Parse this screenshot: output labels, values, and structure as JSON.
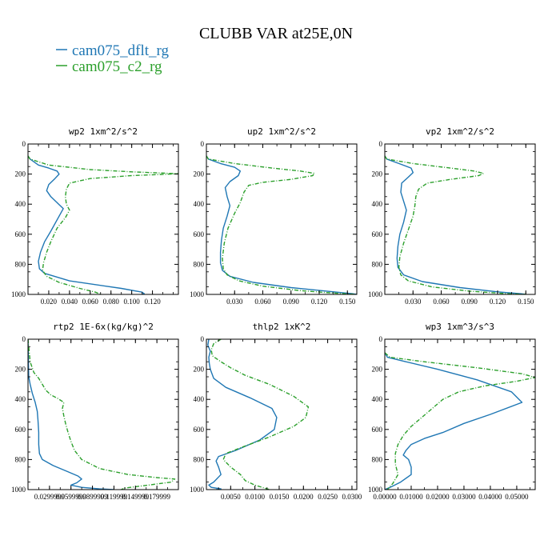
{
  "figure": {
    "title": "CLUBB VAR at25E,0N",
    "legend": [
      {
        "label": "cam075_dflt_rg",
        "color": "#1f77b4"
      },
      {
        "label": "cam075_c2_rg",
        "color": "#2ca02c"
      }
    ]
  },
  "chart_data": [
    {
      "type": "line",
      "title": "wp2   1xm^2/s^2",
      "xlim": [
        0,
        0.145
      ],
      "ylim": [
        1000,
        0
      ],
      "xticks": [
        0.02,
        0.04,
        0.06,
        0.08,
        0.1,
        0.12
      ],
      "xtick_labels": [
        "0.020",
        "0.040",
        "0.060",
        "0.080",
        "0.100",
        "0.120"
      ],
      "yticks": [
        0,
        200,
        400,
        600,
        800,
        1000
      ],
      "ytick_labels": [
        "0",
        "200",
        "400",
        "600",
        "800",
        "1000"
      ],
      "series": [
        {
          "name": "cam075_dflt_rg",
          "color": "#1f77b4",
          "x": [
            0,
            0.002,
            0.01,
            0.02,
            0.028,
            0.03,
            0.026,
            0.02,
            0.018,
            0.022,
            0.028,
            0.034,
            0.03,
            0.022,
            0.016,
            0.012,
            0.01,
            0.011,
            0.016,
            0.04,
            0.09,
            0.11,
            0.112,
            0.11
          ],
          "y": [
            80,
            100,
            140,
            160,
            180,
            200,
            230,
            270,
            310,
            350,
            390,
            430,
            480,
            580,
            650,
            720,
            780,
            830,
            860,
            910,
            960,
            985,
            995,
            1000
          ]
        },
        {
          "name": "cam075_c2_rg",
          "color": "#2ca02c",
          "x": [
            0,
            0.002,
            0.02,
            0.06,
            0.1,
            0.13,
            0.145,
            0.1,
            0.06,
            0.04,
            0.037,
            0.036,
            0.037,
            0.04,
            0.036,
            0.028,
            0.022,
            0.018,
            0.015,
            0.014,
            0.018,
            0.03,
            0.05,
            0.065,
            0.07
          ],
          "y": [
            80,
            100,
            140,
            170,
            185,
            193,
            198,
            210,
            230,
            260,
            300,
            350,
            400,
            440,
            490,
            560,
            650,
            720,
            790,
            840,
            880,
            920,
            960,
            985,
            1000
          ]
        }
      ]
    },
    {
      "type": "line",
      "title": "up2   1xm^2/s^2",
      "xlim": [
        0,
        0.16
      ],
      "ylim": [
        1000,
        0
      ],
      "xticks": [
        0.03,
        0.06,
        0.09,
        0.12,
        0.15
      ],
      "xtick_labels": [
        "0.030",
        "0.060",
        "0.090",
        "0.120",
        "0.150"
      ],
      "yticks": [
        0,
        200,
        400,
        600,
        800,
        1000
      ],
      "ytick_labels": [
        "0",
        "200",
        "400",
        "600",
        "800",
        "1000"
      ],
      "series": [
        {
          "name": "cam075_dflt_rg",
          "color": "#1f77b4",
          "x": [
            0,
            0.002,
            0.015,
            0.03,
            0.036,
            0.034,
            0.025,
            0.02,
            0.022,
            0.025,
            0.022,
            0.018,
            0.016,
            0.015,
            0.015,
            0.017,
            0.025,
            0.05,
            0.09,
            0.13,
            0.155,
            0.16
          ],
          "y": [
            80,
            100,
            130,
            155,
            180,
            210,
            250,
            290,
            350,
            410,
            480,
            560,
            640,
            720,
            790,
            840,
            880,
            920,
            955,
            980,
            995,
            1000
          ]
        },
        {
          "name": "cam075_c2_rg",
          "color": "#2ca02c",
          "x": [
            0,
            0.002,
            0.03,
            0.07,
            0.1,
            0.115,
            0.113,
            0.09,
            0.06,
            0.045,
            0.04,
            0.036,
            0.03,
            0.023,
            0.019,
            0.017,
            0.018,
            0.022,
            0.035,
            0.06,
            0.1,
            0.14,
            0.16
          ],
          "y": [
            80,
            100,
            130,
            160,
            180,
            195,
            210,
            235,
            255,
            275,
            320,
            390,
            460,
            560,
            660,
            760,
            830,
            870,
            910,
            945,
            975,
            993,
            1000
          ]
        }
      ]
    },
    {
      "type": "line",
      "title": "vp2   1xm^2/s^2",
      "xlim": [
        0,
        0.16
      ],
      "ylim": [
        1000,
        0
      ],
      "xticks": [
        0.03,
        0.06,
        0.09,
        0.12,
        0.15
      ],
      "xtick_labels": [
        "0.030",
        "0.060",
        "0.090",
        "0.120",
        "0.150"
      ],
      "yticks": [
        0,
        200,
        400,
        600,
        800,
        1000
      ],
      "ytick_labels": [
        "0",
        "200",
        "400",
        "600",
        "800",
        "1000"
      ],
      "series": [
        {
          "name": "cam075_dflt_rg",
          "color": "#1f77b4",
          "x": [
            0,
            0.002,
            0.015,
            0.028,
            0.03,
            0.025,
            0.018,
            0.017,
            0.02,
            0.023,
            0.02,
            0.016,
            0.014,
            0.013,
            0.014,
            0.02,
            0.04,
            0.08,
            0.12,
            0.145,
            0.15
          ],
          "y": [
            80,
            100,
            130,
            160,
            190,
            220,
            260,
            320,
            380,
            440,
            520,
            600,
            680,
            760,
            820,
            870,
            915,
            955,
            983,
            996,
            1000
          ]
        },
        {
          "name": "cam075_c2_rg",
          "color": "#2ca02c",
          "x": [
            0,
            0.002,
            0.03,
            0.07,
            0.095,
            0.105,
            0.1,
            0.07,
            0.045,
            0.036,
            0.033,
            0.032,
            0.03,
            0.025,
            0.02,
            0.016,
            0.015,
            0.017,
            0.025,
            0.05,
            0.09,
            0.13,
            0.15
          ],
          "y": [
            80,
            100,
            130,
            160,
            180,
            195,
            210,
            235,
            260,
            300,
            350,
            410,
            480,
            570,
            660,
            750,
            820,
            870,
            910,
            950,
            978,
            995,
            1000
          ]
        }
      ]
    },
    {
      "type": "line",
      "title": "rtp2   1E-6x(kg/kg)^2",
      "xlim": [
        0,
        0.21
      ],
      "ylim": [
        1000,
        0
      ],
      "xticks": [
        0.03,
        0.06,
        0.09,
        0.12,
        0.15,
        0.18
      ],
      "xtick_labels": [
        "0.0299999",
        "0.0599999",
        "0.0899999",
        "0.119999",
        "0.149999",
        "0.179999"
      ],
      "yticks": [
        0,
        200,
        400,
        600,
        800,
        1000
      ],
      "ytick_labels": [
        "0",
        "200",
        "400",
        "600",
        "800",
        "1000"
      ],
      "series": [
        {
          "name": "cam075_dflt_rg",
          "color": "#1f77b4",
          "x": [
            0,
            0.001,
            0.003,
            0.006,
            0.01,
            0.013,
            0.014,
            0.015,
            0.015,
            0.016,
            0.02,
            0.035,
            0.055,
            0.07,
            0.075,
            0.068,
            0.06,
            0.075,
            0.1,
            0.12
          ],
          "y": [
            0,
            250,
            300,
            360,
            420,
            480,
            540,
            620,
            700,
            760,
            800,
            840,
            880,
            910,
            930,
            955,
            970,
            985,
            995,
            1000
          ]
        },
        {
          "name": "cam075_c2_rg",
          "color": "#2ca02c",
          "x": [
            0,
            0.003,
            0.008,
            0.015,
            0.02,
            0.025,
            0.032,
            0.042,
            0.05,
            0.048,
            0.05,
            0.053,
            0.056,
            0.06,
            0.065,
            0.075,
            0.1,
            0.14,
            0.18,
            0.205,
            0.2,
            0.16,
            0.135,
            0.13
          ],
          "y": [
            0,
            150,
            220,
            260,
            300,
            340,
            370,
            395,
            420,
            460,
            510,
            570,
            620,
            680,
            740,
            800,
            860,
            900,
            920,
            930,
            950,
            975,
            990,
            1000
          ]
        }
      ]
    },
    {
      "type": "line",
      "title": "thlp2   1xK^2",
      "xlim": [
        0,
        0.031
      ],
      "ylim": [
        1000,
        0
      ],
      "xticks": [
        0.005,
        0.01,
        0.015,
        0.02,
        0.025,
        0.03
      ],
      "xtick_labels": [
        "0.0050",
        "0.0100",
        "0.0150",
        "0.0200",
        "0.0250",
        "0.0300"
      ],
      "yticks": [
        0,
        200,
        400,
        600,
        800,
        1000
      ],
      "ytick_labels": [
        "0",
        "200",
        "400",
        "600",
        "800",
        "1000"
      ],
      "series": [
        {
          "name": "cam075_dflt_rg",
          "color": "#1f77b4",
          "x": [
            0.0005,
            0.0003,
            0.0008,
            0.0005,
            0.0006,
            0.0008,
            0.0015,
            0.004,
            0.009,
            0.0135,
            0.0145,
            0.014,
            0.011,
            0.006,
            0.0025,
            0.002,
            0.0025,
            0.003,
            0.0015,
            0.0005,
            0.001,
            0.003,
            0.002
          ],
          "y": [
            0,
            40,
            80,
            120,
            160,
            200,
            260,
            320,
            390,
            460,
            520,
            600,
            670,
            740,
            780,
            810,
            850,
            900,
            950,
            970,
            985,
            995,
            1000
          ]
        },
        {
          "name": "cam075_c2_rg",
          "color": "#2ca02c",
          "x": [
            0.003,
            0.0015,
            0.001,
            0.0012,
            0.003,
            0.005,
            0.008,
            0.013,
            0.018,
            0.021,
            0.0205,
            0.018,
            0.013,
            0.008,
            0.004,
            0.0035,
            0.005,
            0.007,
            0.008,
            0.01,
            0.012,
            0.013
          ],
          "y": [
            0,
            30,
            70,
            110,
            150,
            190,
            240,
            300,
            380,
            450,
            520,
            580,
            650,
            710,
            760,
            800,
            850,
            900,
            940,
            970,
            990,
            1000
          ]
        }
      ]
    },
    {
      "type": "line",
      "title": "wp3   1xm^3/s^3",
      "xlim": [
        0,
        0.057
      ],
      "ylim": [
        1000,
        0
      ],
      "xticks": [
        0,
        0.01,
        0.02,
        0.03,
        0.04,
        0.05
      ],
      "xtick_labels": [
        "0.00000",
        "0.01000",
        "0.02000",
        "0.03000",
        "0.04000",
        "0.05000"
      ],
      "yticks": [
        0,
        200,
        400,
        600,
        800,
        1000
      ],
      "ytick_labels": [
        "0",
        "200",
        "400",
        "600",
        "800",
        "1000"
      ],
      "series": [
        {
          "name": "cam075_dflt_rg",
          "color": "#1f77b4",
          "x": [
            0,
            0.001,
            0.008,
            0.02,
            0.035,
            0.048,
            0.052,
            0.04,
            0.03,
            0.022,
            0.015,
            0.01,
            0.008,
            0.007,
            0.009,
            0.01,
            0.01,
            0.006,
            0.002,
            0
          ],
          "y": [
            90,
            120,
            150,
            200,
            270,
            350,
            420,
            500,
            560,
            620,
            660,
            700,
            740,
            770,
            800,
            850,
            900,
            950,
            985,
            1000
          ]
        },
        {
          "name": "cam075_c2_rg",
          "color": "#2ca02c",
          "x": [
            0,
            0.002,
            0.015,
            0.035,
            0.052,
            0.057,
            0.05,
            0.038,
            0.028,
            0.022,
            0.018,
            0.014,
            0.01,
            0.007,
            0.005,
            0.004,
            0.004,
            0.005,
            0.003,
            0.001
          ],
          "y": [
            90,
            120,
            150,
            190,
            230,
            255,
            280,
            310,
            350,
            400,
            460,
            520,
            580,
            640,
            700,
            760,
            830,
            900,
            960,
            1000
          ]
        }
      ]
    }
  ]
}
